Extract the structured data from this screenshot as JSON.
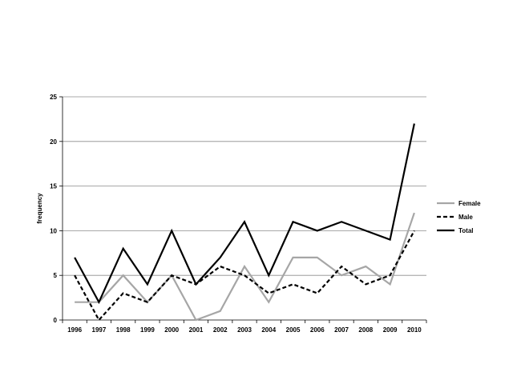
{
  "chart_data": {
    "type": "line",
    "title": "",
    "xlabel": "",
    "ylabel": "frequency",
    "x": [
      1996,
      1997,
      1998,
      1999,
      2000,
      2001,
      2002,
      2003,
      2004,
      2005,
      2006,
      2007,
      2008,
      2009,
      2010
    ],
    "x_tick_labels": [
      "1996",
      "1997",
      "1998",
      "1999",
      "2000",
      "2001",
      "2002",
      "2003",
      "2004",
      "2005",
      "2006",
      "2007",
      "2008",
      "2009",
      "2010"
    ],
    "y_ticks": [
      0,
      5,
      10,
      15,
      20,
      25
    ],
    "y_tick_labels": [
      "0",
      "5",
      "10",
      "15",
      "20",
      "25"
    ],
    "ylim": [
      0,
      25
    ],
    "grid": "horizontal",
    "legend_position": "right",
    "series": [
      {
        "name": "Female",
        "values": [
          2,
          2,
          5,
          2,
          5,
          0,
          1,
          6,
          2,
          7,
          7,
          5,
          6,
          4,
          12
        ],
        "color": "#a6a6a6",
        "dash": "solid"
      },
      {
        "name": "Male",
        "values": [
          5,
          0,
          3,
          2,
          5,
          4,
          6,
          5,
          3,
          4,
          3,
          6,
          4,
          5,
          10
        ],
        "color": "#000000",
        "dash": "dashed"
      },
      {
        "name": "Total",
        "values": [
          7,
          2,
          8,
          4,
          10,
          4,
          7,
          11,
          5,
          11,
          10,
          11,
          10,
          9,
          22
        ],
        "color": "#000000",
        "dash": "solid"
      }
    ]
  }
}
